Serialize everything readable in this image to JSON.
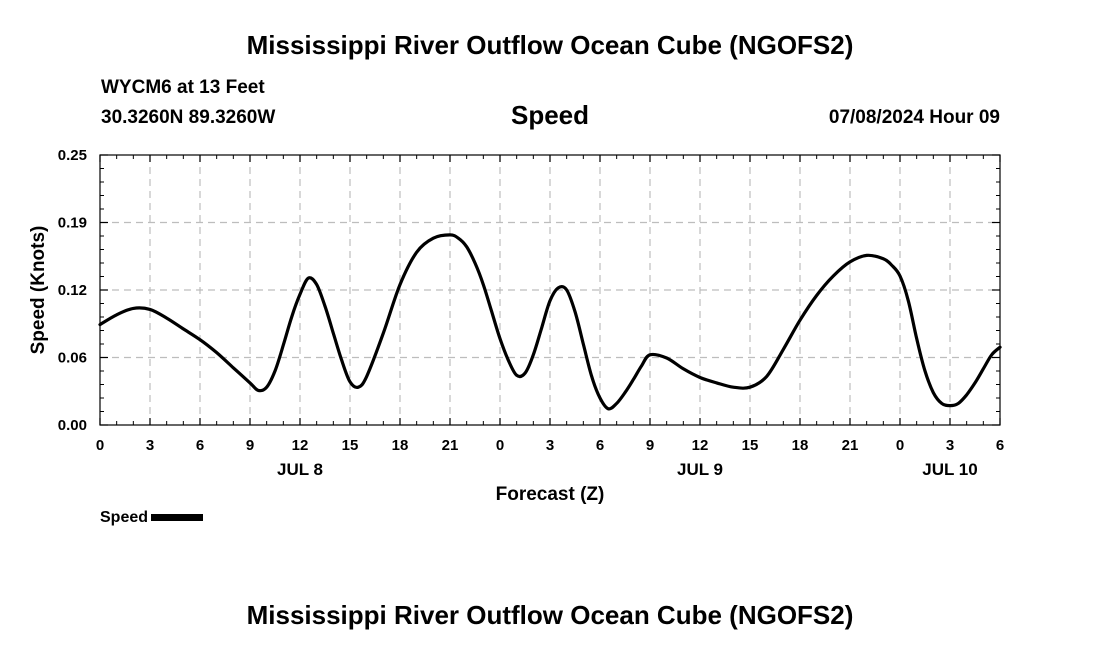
{
  "header": {
    "title": "Mississippi River Outflow Ocean Cube (NGOFS2)",
    "station_label": "WYCM6 at 13 Feet",
    "coordinates": "30.3260N  89.3260W",
    "timestamp": "07/08/2024 Hour 09"
  },
  "footer": {
    "title": "Mississippi River Outflow Ocean Cube (NGOFS2)"
  },
  "legend": {
    "label": "Speed"
  },
  "chart_data": {
    "type": "line",
    "title": "Speed",
    "xlabel": "Forecast (Z)",
    "ylabel": "Speed (Knots)",
    "ylim": [
      0,
      0.25
    ],
    "y_ticks": [
      "0.00",
      "0.06",
      "0.12",
      "0.19",
      "0.25"
    ],
    "y_tick_values": [
      0,
      0.0625,
      0.125,
      0.1875,
      0.25
    ],
    "xlim": [
      0,
      54
    ],
    "x_ticks": [
      {
        "hour": 0,
        "label": "0"
      },
      {
        "hour": 3,
        "label": "3"
      },
      {
        "hour": 6,
        "label": "6"
      },
      {
        "hour": 9,
        "label": "9"
      },
      {
        "hour": 12,
        "label": "12"
      },
      {
        "hour": 15,
        "label": "15"
      },
      {
        "hour": 18,
        "label": "18"
      },
      {
        "hour": 21,
        "label": "21"
      },
      {
        "hour": 24,
        "label": "0"
      },
      {
        "hour": 27,
        "label": "3"
      },
      {
        "hour": 30,
        "label": "6"
      },
      {
        "hour": 33,
        "label": "9"
      },
      {
        "hour": 36,
        "label": "12"
      },
      {
        "hour": 39,
        "label": "15"
      },
      {
        "hour": 42,
        "label": "18"
      },
      {
        "hour": 45,
        "label": "21"
      },
      {
        "hour": 48,
        "label": "0"
      },
      {
        "hour": 51,
        "label": "3"
      },
      {
        "hour": 54,
        "label": "6"
      }
    ],
    "date_labels": [
      {
        "hour": 12,
        "label": "JUL 8"
      },
      {
        "hour": 36,
        "label": "JUL 9"
      },
      {
        "hour": 51,
        "label": "JUL 10"
      }
    ],
    "grid": true,
    "series": [
      {
        "name": "Speed",
        "x": [
          0,
          1,
          2,
          3,
          4,
          5,
          6,
          7,
          8,
          9,
          9.5,
          10,
          10.5,
          11,
          11.5,
          12,
          12.5,
          13,
          13.5,
          14,
          14.5,
          15,
          15.5,
          16,
          17,
          18,
          19,
          20,
          21,
          21.5,
          22,
          22.5,
          23,
          23.5,
          24,
          24.5,
          25,
          25.5,
          26,
          26.5,
          27,
          27.5,
          28,
          28.5,
          29,
          29.5,
          30,
          30.5,
          31,
          31.5,
          32,
          32.5,
          33,
          34,
          35,
          36,
          37,
          38,
          39,
          40,
          41,
          42,
          43,
          44,
          45,
          46,
          47,
          47.5,
          48,
          48.5,
          49,
          49.5,
          50,
          50.5,
          51,
          51.5,
          52,
          52.5,
          53,
          53.5,
          54
        ],
        "values": [
          0.093,
          0.102,
          0.108,
          0.107,
          0.099,
          0.089,
          0.079,
          0.067,
          0.053,
          0.039,
          0.032,
          0.035,
          0.05,
          0.074,
          0.1,
          0.121,
          0.136,
          0.13,
          0.11,
          0.085,
          0.06,
          0.04,
          0.035,
          0.045,
          0.085,
          0.13,
          0.16,
          0.173,
          0.176,
          0.173,
          0.165,
          0.15,
          0.13,
          0.105,
          0.08,
          0.06,
          0.046,
          0.048,
          0.065,
          0.09,
          0.115,
          0.127,
          0.125,
          0.105,
          0.075,
          0.045,
          0.025,
          0.015,
          0.02,
          0.03,
          0.042,
          0.055,
          0.065,
          0.062,
          0.052,
          0.044,
          0.039,
          0.035,
          0.035,
          0.045,
          0.07,
          0.097,
          0.12,
          0.138,
          0.151,
          0.157,
          0.154,
          0.148,
          0.138,
          0.115,
          0.08,
          0.05,
          0.03,
          0.02,
          0.018,
          0.02,
          0.028,
          0.039,
          0.052,
          0.065,
          0.072
        ]
      }
    ]
  }
}
